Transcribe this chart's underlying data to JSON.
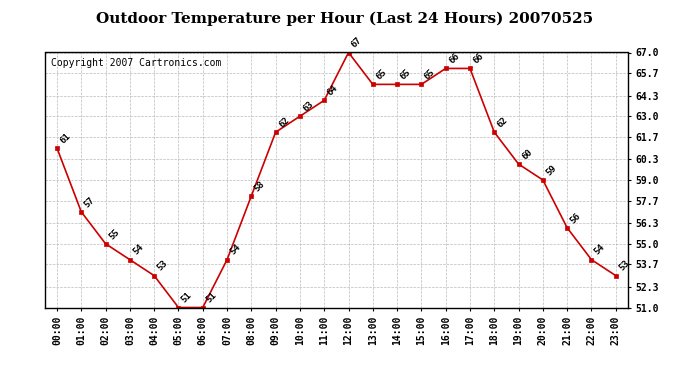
{
  "title": "Outdoor Temperature per Hour (Last 24 Hours) 20070525",
  "copyright": "Copyright 2007 Cartronics.com",
  "hours": [
    "00:00",
    "01:00",
    "02:00",
    "03:00",
    "04:00",
    "05:00",
    "06:00",
    "07:00",
    "08:00",
    "09:00",
    "10:00",
    "11:00",
    "12:00",
    "13:00",
    "14:00",
    "15:00",
    "16:00",
    "17:00",
    "18:00",
    "19:00",
    "20:00",
    "21:00",
    "22:00",
    "23:00"
  ],
  "temps": [
    61,
    57,
    55,
    54,
    53,
    51,
    51,
    54,
    58,
    62,
    63,
    64,
    67,
    65,
    65,
    65,
    66,
    66,
    62,
    60,
    59,
    56,
    54,
    53
  ],
  "ylim_min": 51.0,
  "ylim_max": 67.0,
  "yticks": [
    51.0,
    52.3,
    53.7,
    55.0,
    56.3,
    57.7,
    59.0,
    60.3,
    61.7,
    63.0,
    64.3,
    65.7,
    67.0
  ],
  "line_color": "#cc0000",
  "marker_color": "#cc0000",
  "bg_color": "#ffffff",
  "grid_color": "#bbbbbb",
  "title_fontsize": 11,
  "copyright_fontsize": 7,
  "label_fontsize": 6.5,
  "tick_fontsize": 7
}
